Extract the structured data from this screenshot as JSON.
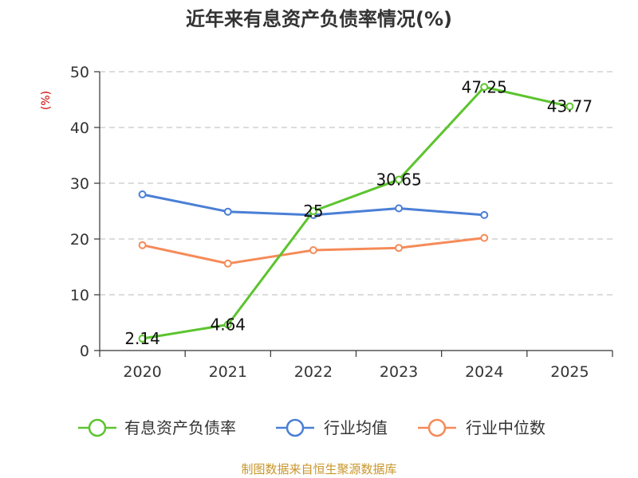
{
  "chart_data": {
    "type": "line",
    "title": "近年来有息资产负债率情况(%)",
    "ylabel": "(%)",
    "xlabel": "",
    "categories": [
      "2020",
      "2021",
      "2022",
      "2023",
      "2024",
      "2025"
    ],
    "ylim": [
      0,
      50
    ],
    "yticks": [
      0,
      10,
      20,
      30,
      40,
      50
    ],
    "grid": true,
    "legend_position": "bottom",
    "series": [
      {
        "name": "有息资产负债率",
        "color": "#5cc42e",
        "values": [
          2.14,
          4.64,
          25,
          30.65,
          47.25,
          43.77
        ],
        "labels": [
          "2.14",
          "4.64",
          "25",
          "30.65",
          "47.25",
          "43.77"
        ]
      },
      {
        "name": "行业均值",
        "color": "#4a7fd6",
        "values": [
          28.0,
          24.9,
          24.3,
          25.5,
          24.3,
          null
        ]
      },
      {
        "name": "行业中位数",
        "color": "#f58b58",
        "values": [
          18.9,
          15.6,
          18.0,
          18.4,
          20.2,
          null
        ]
      }
    ]
  },
  "source": "制图数据来自恒生聚源数据库"
}
